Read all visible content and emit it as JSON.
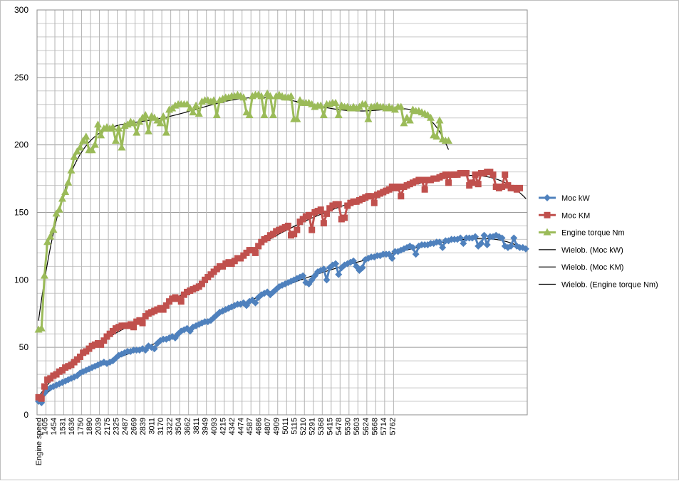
{
  "chart_data": {
    "type": "line",
    "title": "",
    "xlabel": "",
    "ylabel": "",
    "ylim": [
      0,
      300
    ],
    "y_ticks": [
      0,
      50,
      100,
      150,
      200,
      250,
      300
    ],
    "grid": true,
    "legend_position": "right",
    "first_category_label": "Engine speed",
    "x_tick_labels": [
      "1405",
      "1454",
      "1531",
      "1636",
      "1750",
      "1890",
      "2039",
      "2175",
      "2325",
      "2487",
      "2669",
      "2839",
      "3011",
      "3170",
      "3322",
      "3504",
      "3662",
      "3811",
      "3949",
      "4093",
      "4215",
      "4342",
      "4474",
      "4587",
      "4686",
      "4807",
      "4909",
      "5011",
      "5115",
      "5210",
      "5291",
      "5368",
      "5415",
      "5478",
      "5530",
      "5603",
      "5624",
      "5668",
      "5714",
      "5762"
    ],
    "x_tick_note": "tick labels are printed on every 3rd category; each label spans 3 category slots",
    "series": [
      {
        "name": "Moc  kW",
        "color": "#4f81bd",
        "marker": "diamond",
        "values": [
          10,
          9,
          16,
          19,
          20,
          21,
          22,
          23,
          24,
          25,
          26,
          27,
          28,
          29,
          31,
          32,
          33,
          34,
          35,
          36,
          37,
          38,
          39,
          38,
          39,
          40,
          42,
          44,
          45,
          46,
          47,
          47,
          48,
          48,
          48,
          49,
          48,
          51,
          50,
          49,
          53,
          55,
          56,
          56,
          57,
          58,
          57,
          60,
          62,
          63,
          64,
          62,
          65,
          66,
          67,
          68,
          69,
          69,
          70,
          72,
          74,
          76,
          77,
          78,
          79,
          80,
          81,
          82,
          82,
          83,
          81,
          84,
          85,
          83,
          87,
          89,
          90,
          91,
          89,
          91,
          93,
          95,
          96,
          97,
          98,
          99,
          100,
          101,
          102,
          103,
          98,
          97,
          100,
          103,
          106,
          107,
          108,
          100,
          109,
          111,
          112,
          104,
          109,
          111,
          112,
          113,
          114,
          110,
          107,
          109,
          115,
          116,
          117,
          117,
          118,
          118,
          119,
          119,
          119,
          116,
          121,
          121,
          122,
          123,
          124,
          125,
          124,
          119,
          125,
          126,
          126,
          126,
          127,
          127,
          128,
          128,
          124,
          129,
          129,
          130,
          130,
          130,
          131,
          127,
          131,
          131,
          131,
          132,
          125,
          127,
          133,
          126,
          132,
          132,
          133,
          132,
          131,
          125,
          124,
          125,
          131,
          125,
          124,
          124,
          123
        ]
      },
      {
        "name": "Moc KM",
        "color": "#c0504d",
        "marker": "square",
        "values": [
          13,
          12,
          21,
          26,
          27,
          29,
          30,
          32,
          33,
          35,
          36,
          37,
          39,
          41,
          43,
          46,
          47,
          49,
          51,
          52,
          53,
          52,
          55,
          58,
          60,
          62,
          64,
          65,
          66,
          66,
          66,
          67,
          65,
          69,
          70,
          68,
          73,
          75,
          76,
          77,
          78,
          79,
          78,
          81,
          84,
          86,
          87,
          86,
          84,
          89,
          91,
          92,
          93,
          94,
          95,
          97,
          100,
          102,
          104,
          106,
          108,
          110,
          110,
          112,
          113,
          112,
          114,
          116,
          116,
          118,
          120,
          122,
          122,
          120,
          125,
          128,
          130,
          131,
          133,
          134,
          136,
          137,
          138,
          139,
          140,
          133,
          134,
          137,
          143,
          145,
          147,
          148,
          137,
          150,
          151,
          152,
          142,
          149,
          153,
          155,
          156,
          156,
          145,
          146,
          155,
          157,
          158,
          158,
          159,
          160,
          161,
          162,
          162,
          157,
          163,
          164,
          165,
          166,
          167,
          169,
          168,
          169,
          162,
          169,
          170,
          171,
          172,
          173,
          174,
          174,
          167,
          174,
          174,
          175,
          175,
          176,
          177,
          178,
          172,
          178,
          178,
          178,
          179,
          179,
          179,
          170,
          172,
          178,
          171,
          179,
          179,
          180,
          180,
          178,
          169,
          168,
          169,
          178,
          170,
          168,
          168,
          167,
          168
        ]
      },
      {
        "name": "Engine torque Nm",
        "color": "#9bbb59",
        "marker": "triangle",
        "values": [
          63,
          64,
          103,
          128,
          132,
          137,
          149,
          152,
          160,
          165,
          172,
          181,
          191,
          195,
          198,
          203,
          206,
          196,
          196,
          200,
          215,
          207,
          212,
          213,
          212,
          213,
          203,
          212,
          198,
          214,
          215,
          217,
          216,
          209,
          217,
          220,
          222,
          210,
          221,
          220,
          218,
          216,
          221,
          209,
          226,
          227,
          229,
          230,
          230,
          230,
          230,
          227,
          224,
          229,
          223,
          232,
          233,
          233,
          232,
          233,
          222,
          233,
          234,
          235,
          235,
          236,
          236,
          237,
          236,
          235,
          224,
          222,
          236,
          237,
          237,
          236,
          222,
          238,
          236,
          222,
          236,
          237,
          236,
          235,
          235,
          236,
          219,
          219,
          233,
          231,
          231,
          231,
          230,
          228,
          229,
          229,
          222,
          230,
          230,
          231,
          231,
          222,
          229,
          228,
          228,
          227,
          228,
          227,
          228,
          230,
          230,
          219,
          228,
          228,
          229,
          228,
          228,
          227,
          228,
          227,
          226,
          228,
          228,
          216,
          220,
          218,
          226,
          225,
          225,
          224,
          223,
          222,
          220,
          207,
          206,
          218,
          204,
          203,
          203
        ]
      },
      {
        "name": "Wielob. (Moc  kW)",
        "color": "#000000",
        "trendline": "polynomial",
        "fit_to": "Moc  kW"
      },
      {
        "name": "Wielob. (Moc KM)",
        "color": "#000000",
        "trendline": "polynomial",
        "fit_to": "Moc KM"
      },
      {
        "name": "Wielob. (Engine torque Nm)",
        "color": "#000000",
        "trendline": "polynomial",
        "fit_to": "Engine torque Nm"
      }
    ]
  }
}
